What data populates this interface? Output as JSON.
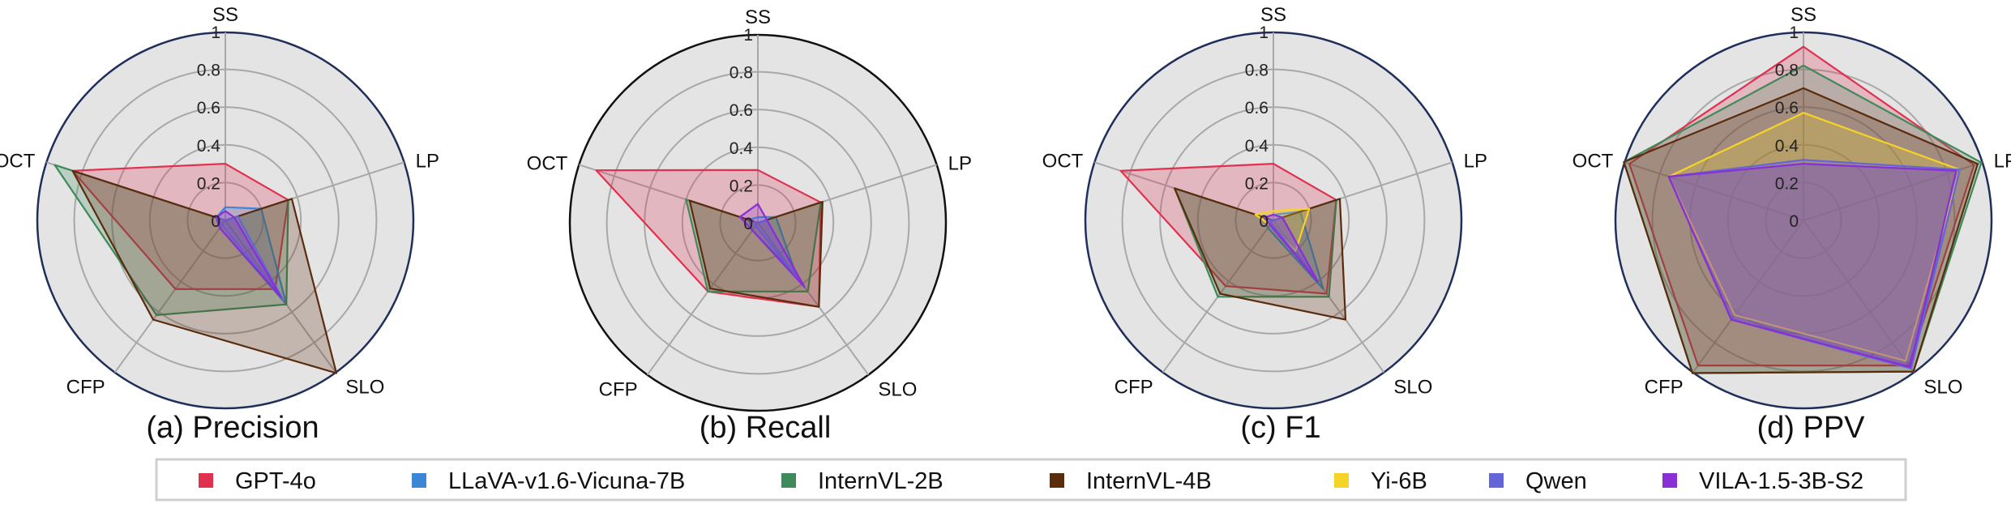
{
  "axes": [
    "SS",
    "LP",
    "SLO",
    "CFP",
    "OCT"
  ],
  "ticks": [
    "0",
    "0.2",
    "0.4",
    "0.6",
    "0.8",
    "1"
  ],
  "colors": {
    "GPT-4o": "#e0314f",
    "LLaVA-v1.6-Vicuna-7B": "#3d86d6",
    "InternVL-2B": "#3e8a5a",
    "InternVL-4B": "#5a2c0e",
    "Yi-6B": "#f5d327",
    "Qwen": "#6565d9",
    "VILA-1.5-3B-S2": "#8a2ed6"
  },
  "legend": [
    "GPT-4o",
    "LLaVA-v1.6-Vicuna-7B",
    "InternVL-2B",
    "InternVL-4B",
    "Yi-6B",
    "Qwen",
    "VILA-1.5-3B-S2"
  ],
  "chart_data": [
    {
      "type": "radar",
      "caption": "(a) Precision",
      "categories": [
        "SS",
        "LP",
        "SLO",
        "CFP",
        "OCT"
      ],
      "rlim": [
        0,
        1
      ],
      "grid": true,
      "series": [
        {
          "name": "GPT-4o",
          "values": [
            0.3,
            0.35,
            0.45,
            0.45,
            0.85
          ]
        },
        {
          "name": "LLaVA-v1.6-Vicuna-7B",
          "values": [
            0.07,
            0.2,
            0.55,
            0.05,
            0.05
          ]
        },
        {
          "name": "InternVL-2B",
          "values": [
            0.0,
            0.35,
            0.55,
            0.62,
            0.95
          ]
        },
        {
          "name": "InternVL-4B",
          "values": [
            0.0,
            0.37,
            1.0,
            0.65,
            0.85
          ]
        },
        {
          "name": "Yi-6B",
          "values": [
            0.0,
            0.0,
            0.0,
            0.0,
            0.0
          ]
        },
        {
          "name": "Qwen",
          "values": [
            0.0,
            0.07,
            0.52,
            0.03,
            0.05
          ]
        },
        {
          "name": "VILA-1.5-3B-S2",
          "values": [
            0.05,
            0.05,
            0.5,
            0.05,
            0.05
          ]
        }
      ]
    },
    {
      "type": "radar",
      "caption": "(b) Recall",
      "categories": [
        "SS",
        "LP",
        "SLO",
        "CFP",
        "OCT"
      ],
      "rlim": [
        0,
        1
      ],
      "grid": true,
      "series": [
        {
          "name": "GPT-4o",
          "values": [
            0.28,
            0.35,
            0.55,
            0.45,
            0.9
          ]
        },
        {
          "name": "LLaVA-v1.6-Vicuna-7B",
          "values": [
            0.03,
            0.1,
            0.35,
            0.05,
            0.05
          ]
        },
        {
          "name": "InternVL-2B",
          "values": [
            0.0,
            0.35,
            0.45,
            0.45,
            0.4
          ]
        },
        {
          "name": "InternVL-4B",
          "values": [
            0.0,
            0.36,
            0.55,
            0.43,
            0.38
          ]
        },
        {
          "name": "Yi-6B",
          "values": [
            0.0,
            0.0,
            0.0,
            0.0,
            0.0
          ]
        },
        {
          "name": "Qwen",
          "values": [
            0.0,
            0.05,
            0.4,
            0.02,
            0.02
          ]
        },
        {
          "name": "VILA-1.5-3B-S2",
          "values": [
            0.1,
            0.05,
            0.42,
            0.05,
            0.1
          ]
        }
      ]
    },
    {
      "type": "radar",
      "caption": "(c) F1",
      "categories": [
        "SS",
        "LP",
        "SLO",
        "CFP",
        "OCT"
      ],
      "rlim": [
        0,
        1
      ],
      "grid": true,
      "series": [
        {
          "name": "GPT-4o",
          "values": [
            0.3,
            0.35,
            0.48,
            0.43,
            0.85
          ]
        },
        {
          "name": "LLaVA-v1.6-Vicuna-7B",
          "values": [
            0.03,
            0.15,
            0.45,
            0.05,
            0.05
          ]
        },
        {
          "name": "InternVL-2B",
          "values": [
            0.0,
            0.35,
            0.5,
            0.5,
            0.55
          ]
        },
        {
          "name": "InternVL-4B",
          "values": [
            0.0,
            0.37,
            0.65,
            0.48,
            0.55
          ]
        },
        {
          "name": "Yi-6B",
          "values": [
            0.05,
            0.2,
            0.2,
            0.03,
            0.1
          ]
        },
        {
          "name": "Qwen",
          "values": [
            0.0,
            0.05,
            0.4,
            0.02,
            0.02
          ]
        },
        {
          "name": "VILA-1.5-3B-S2",
          "values": [
            0.03,
            0.05,
            0.4,
            0.03,
            0.05
          ]
        }
      ]
    },
    {
      "type": "radar",
      "caption": "(d) PPV",
      "categories": [
        "SS",
        "LP",
        "SLO",
        "CFP",
        "OCT"
      ],
      "rlim": [
        0,
        1
      ],
      "grid": true,
      "series": [
        {
          "name": "GPT-4o",
          "values": [
            0.92,
            0.95,
            0.95,
            0.95,
            0.97
          ]
        },
        {
          "name": "LLaVA-v1.6-Vicuna-7B",
          "values": [
            0.3,
            0.85,
            0.97,
            0.65,
            0.75
          ]
        },
        {
          "name": "InternVL-2B",
          "values": [
            0.82,
            0.99,
            0.99,
            1.0,
            1.0
          ]
        },
        {
          "name": "InternVL-4B",
          "values": [
            0.7,
            0.97,
            0.99,
            1.0,
            1.0
          ]
        },
        {
          "name": "Yi-6B",
          "values": [
            0.57,
            0.87,
            0.92,
            0.62,
            0.75
          ]
        },
        {
          "name": "Qwen",
          "values": [
            0.32,
            0.87,
            0.97,
            0.65,
            0.75
          ]
        },
        {
          "name": "VILA-1.5-3B-S2",
          "values": [
            0.3,
            0.85,
            0.96,
            0.65,
            0.75
          ]
        }
      ]
    }
  ]
}
